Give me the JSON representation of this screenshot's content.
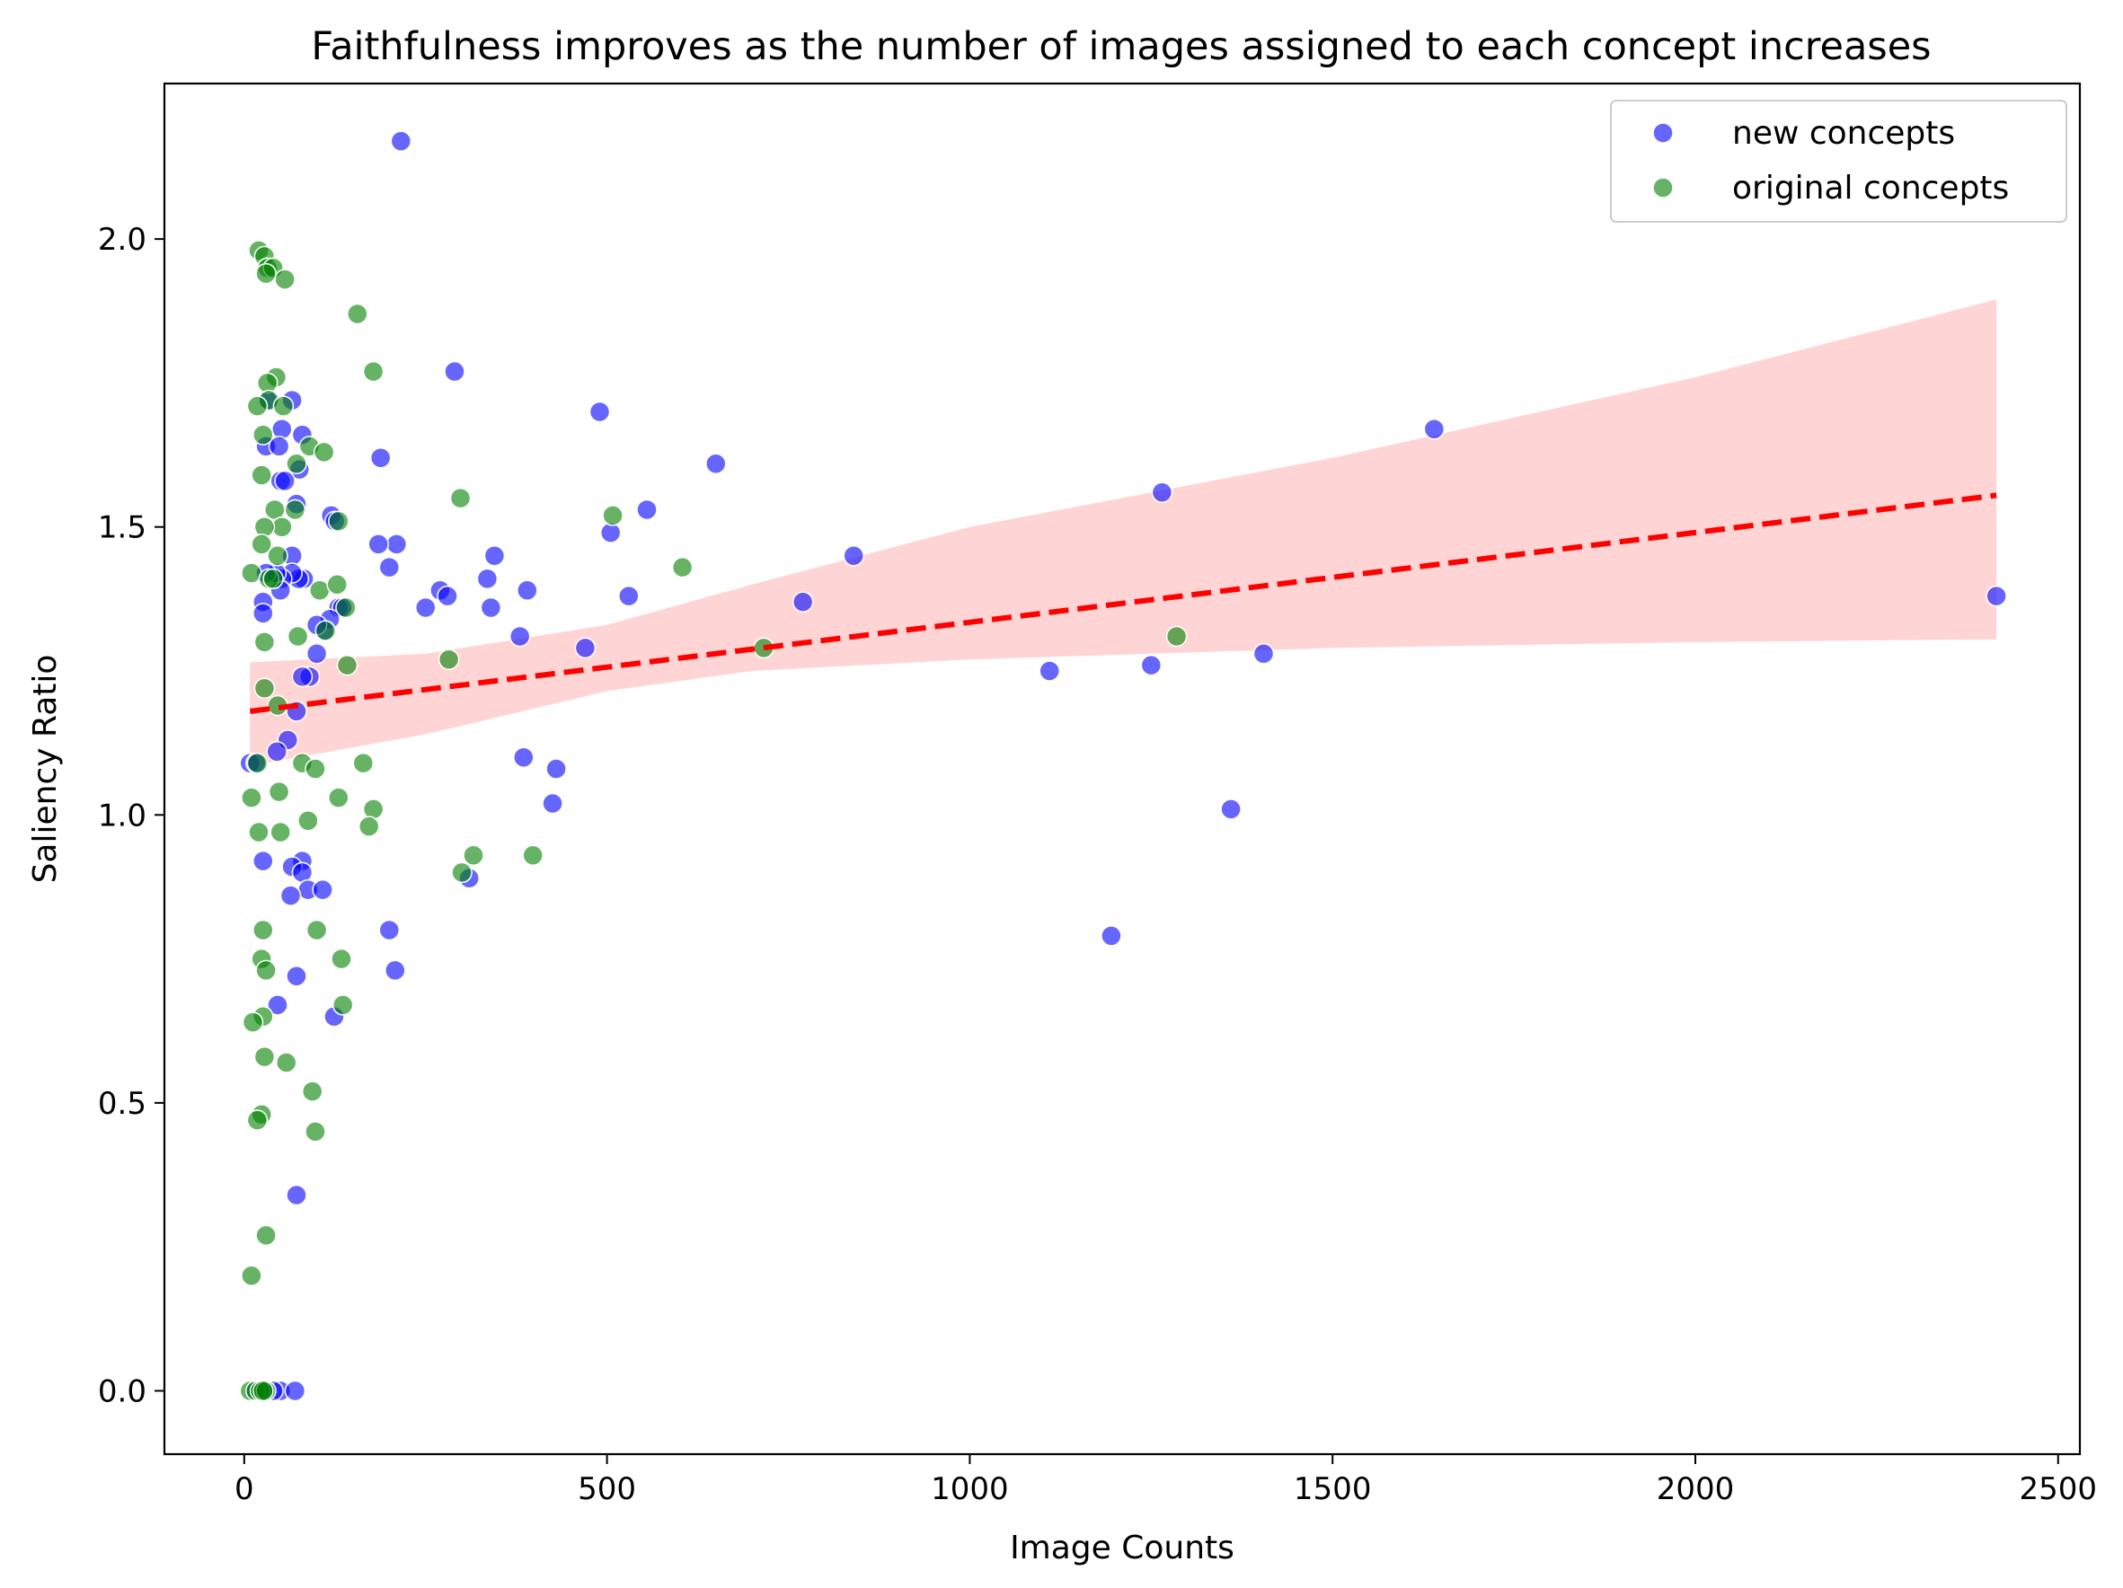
{
  "chart_data": {
    "type": "scatter",
    "title": "Faithfulness improves as the number of images assigned to each concept increases",
    "xlabel": "Image Counts",
    "ylabel": "Saliency Ratio",
    "xlim": [
      -110,
      2530
    ],
    "ylim": [
      -0.11,
      2.27
    ],
    "xticks": [
      0,
      500,
      1000,
      1500,
      2000,
      2500
    ],
    "yticks": [
      0.0,
      0.5,
      1.0,
      1.5,
      2.0
    ],
    "xtick_labels": [
      "0",
      "500",
      "1000",
      "1500",
      "2000",
      "2500"
    ],
    "ytick_labels": [
      "0.0",
      "0.5",
      "1.0",
      "1.5",
      "2.0"
    ],
    "grid": false,
    "legend_position": "top-right",
    "series": [
      {
        "name": "new concepts",
        "color": "#0000ff",
        "points": [
          [
            216,
            2.17
          ],
          [
            290,
            1.77
          ],
          [
            490,
            1.7
          ],
          [
            650,
            1.61
          ],
          [
            1640,
            1.67
          ],
          [
            1265,
            1.56
          ],
          [
            555,
            1.53
          ],
          [
            505,
            1.49
          ],
          [
            840,
            1.45
          ],
          [
            770,
            1.37
          ],
          [
            1110,
            1.25
          ],
          [
            1250,
            1.26
          ],
          [
            1405,
            1.28
          ],
          [
            1360,
            1.01
          ],
          [
            1195,
            0.79
          ],
          [
            2415,
            1.38
          ],
          [
            345,
            1.45
          ],
          [
            335,
            1.41
          ],
          [
            340,
            1.36
          ],
          [
            390,
            1.39
          ],
          [
            380,
            1.31
          ],
          [
            530,
            1.38
          ],
          [
            470,
            1.29
          ],
          [
            385,
            1.1
          ],
          [
            430,
            1.08
          ],
          [
            425,
            1.02
          ],
          [
            310,
            0.89
          ],
          [
            270,
            1.39
          ],
          [
            280,
            1.38
          ],
          [
            250,
            1.36
          ],
          [
            200,
            1.43
          ],
          [
            210,
            1.47
          ],
          [
            185,
            1.47
          ],
          [
            188,
            1.62
          ],
          [
            200,
            0.8
          ],
          [
            208,
            0.73
          ],
          [
            120,
            1.52
          ],
          [
            125,
            1.51
          ],
          [
            130,
            1.36
          ],
          [
            135,
            1.36
          ],
          [
            118,
            1.34
          ],
          [
            110,
            1.32
          ],
          [
            100,
            1.33
          ],
          [
            100,
            1.28
          ],
          [
            90,
            1.24
          ],
          [
            80,
            1.24
          ],
          [
            72,
            1.18
          ],
          [
            60,
            1.13
          ],
          [
            45,
            1.11
          ],
          [
            82,
            1.41
          ],
          [
            75,
            1.41
          ],
          [
            66,
            1.45
          ],
          [
            66,
            1.42
          ],
          [
            52,
            1.41
          ],
          [
            50,
            1.39
          ],
          [
            44,
            1.42
          ],
          [
            30,
            1.42
          ],
          [
            26,
            1.37
          ],
          [
            26,
            1.35
          ],
          [
            30,
            1.64
          ],
          [
            32,
            1.72
          ],
          [
            52,
            1.67
          ],
          [
            66,
            1.72
          ],
          [
            80,
            1.66
          ],
          [
            76,
            1.6
          ],
          [
            48,
            1.64
          ],
          [
            50,
            1.58
          ],
          [
            56,
            1.58
          ],
          [
            72,
            1.54
          ],
          [
            26,
            0.92
          ],
          [
            80,
            0.92
          ],
          [
            66,
            0.91
          ],
          [
            80,
            0.9
          ],
          [
            88,
            0.87
          ],
          [
            64,
            0.86
          ],
          [
            108,
            0.87
          ],
          [
            72,
            0.72
          ],
          [
            46,
            0.67
          ],
          [
            124,
            0.65
          ],
          [
            72,
            0.34
          ],
          [
            50,
            0.0
          ],
          [
            70,
            0.0
          ],
          [
            40,
            0.0
          ],
          [
            28,
            0.0
          ],
          [
            14,
            0.0
          ],
          [
            8,
            1.09
          ],
          [
            16,
            1.09
          ]
        ]
      },
      {
        "name": "original concepts",
        "color": "#008000",
        "points": [
          [
            20,
            1.98
          ],
          [
            28,
            1.97
          ],
          [
            32,
            1.95
          ],
          [
            40,
            1.95
          ],
          [
            56,
            1.93
          ],
          [
            30,
            1.94
          ],
          [
            156,
            1.87
          ],
          [
            178,
            1.77
          ],
          [
            44,
            1.76
          ],
          [
            32,
            1.75
          ],
          [
            34,
            1.72
          ],
          [
            54,
            1.71
          ],
          [
            18,
            1.71
          ],
          [
            26,
            1.66
          ],
          [
            90,
            1.64
          ],
          [
            110,
            1.63
          ],
          [
            72,
            1.61
          ],
          [
            24,
            1.59
          ],
          [
            298,
            1.55
          ],
          [
            508,
            1.52
          ],
          [
            70,
            1.53
          ],
          [
            42,
            1.53
          ],
          [
            52,
            1.5
          ],
          [
            28,
            1.5
          ],
          [
            130,
            1.51
          ],
          [
            24,
            1.47
          ],
          [
            604,
            1.43
          ],
          [
            46,
            1.45
          ],
          [
            10,
            1.42
          ],
          [
            34,
            1.41
          ],
          [
            40,
            1.41
          ],
          [
            104,
            1.39
          ],
          [
            128,
            1.4
          ],
          [
            140,
            1.36
          ],
          [
            112,
            1.32
          ],
          [
            74,
            1.31
          ],
          [
            28,
            1.3
          ],
          [
            282,
            1.27
          ],
          [
            142,
            1.26
          ],
          [
            716,
            1.29
          ],
          [
            1285,
            1.31
          ],
          [
            28,
            1.22
          ],
          [
            46,
            1.19
          ],
          [
            80,
            1.09
          ],
          [
            98,
            1.08
          ],
          [
            18,
            1.09
          ],
          [
            164,
            1.09
          ],
          [
            48,
            1.04
          ],
          [
            10,
            1.03
          ],
          [
            130,
            1.03
          ],
          [
            178,
            1.01
          ],
          [
            88,
            0.99
          ],
          [
            172,
            0.98
          ],
          [
            20,
            0.97
          ],
          [
            50,
            0.97
          ],
          [
            398,
            0.93
          ],
          [
            316,
            0.93
          ],
          [
            300,
            0.9
          ],
          [
            26,
            0.8
          ],
          [
            100,
            0.8
          ],
          [
            24,
            0.75
          ],
          [
            134,
            0.75
          ],
          [
            30,
            0.73
          ],
          [
            26,
            0.65
          ],
          [
            136,
            0.67
          ],
          [
            12,
            0.64
          ],
          [
            28,
            0.58
          ],
          [
            58,
            0.57
          ],
          [
            94,
            0.52
          ],
          [
            24,
            0.48
          ],
          [
            18,
            0.47
          ],
          [
            98,
            0.45
          ],
          [
            30,
            0.27
          ],
          [
            10,
            0.2
          ],
          [
            8,
            0.0
          ],
          [
            16,
            0.0
          ],
          [
            22,
            0.0
          ],
          [
            30,
            0.0
          ],
          [
            26,
            0.0
          ]
        ]
      }
    ],
    "regression": {
      "color": "#ff0000",
      "x": [
        8,
        2415
      ],
      "y": [
        1.18,
        1.555
      ],
      "band_color": "#ffcccc",
      "band_upper": [
        [
          8,
          1.265
        ],
        [
          250,
          1.28
        ],
        [
          500,
          1.33
        ],
        [
          700,
          1.4
        ],
        [
          1000,
          1.5
        ],
        [
          1500,
          1.62
        ],
        [
          2000,
          1.76
        ],
        [
          2415,
          1.895
        ]
      ],
      "band_lower": [
        [
          8,
          1.085
        ],
        [
          250,
          1.14
        ],
        [
          500,
          1.215
        ],
        [
          700,
          1.25
        ],
        [
          1000,
          1.27
        ],
        [
          1500,
          1.29
        ],
        [
          2000,
          1.3
        ],
        [
          2415,
          1.305
        ]
      ]
    }
  }
}
